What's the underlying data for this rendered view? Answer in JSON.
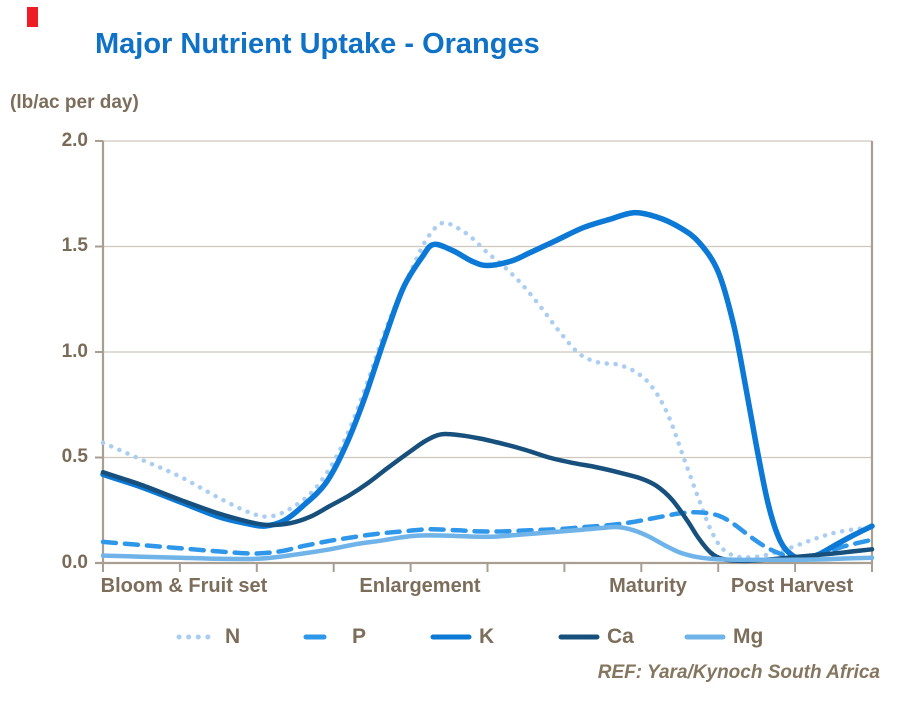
{
  "title": "Major Nutrient Uptake - Oranges",
  "y_axis_unit": "(lb/ac per day)",
  "footer_ref": "REF: Yara/Kynoch South Africa",
  "colors": {
    "title_blue": "#0f72c6",
    "label_brown": "#7d6e5b",
    "grid": "#cfc8bd",
    "axis": "#a89e92",
    "red_marker": "#ee1c25"
  },
  "chart_data": {
    "type": "line",
    "title": "Major Nutrient Uptake - Oranges",
    "xlabel": "",
    "ylabel": "(lb/ac per day)",
    "ylim": [
      0,
      2
    ],
    "yticks": [
      "2.0",
      "1.5",
      "1.0",
      "0.5",
      "0.0"
    ],
    "ytick_values": [
      2.0,
      1.5,
      1.0,
      0.5,
      0.0
    ],
    "grid": true,
    "x_tick_intervals": 10,
    "legend_position": "bottom",
    "x_categories": [
      "Bloom & Fruit set",
      "Enlargement",
      "Maturity",
      "Post Harvest"
    ],
    "x_category_positions": [
      0.105,
      0.412,
      0.709,
      0.896
    ],
    "series": [
      {
        "name": "N",
        "color": "#a9cef2",
        "style": "dotted",
        "width": 4.5,
        "points": [
          [
            0,
            0.57
          ],
          [
            0.05,
            0.49
          ],
          [
            0.1,
            0.41
          ],
          [
            0.15,
            0.31
          ],
          [
            0.19,
            0.24
          ],
          [
            0.215,
            0.22
          ],
          [
            0.24,
            0.25
          ],
          [
            0.27,
            0.33
          ],
          [
            0.295,
            0.45
          ],
          [
            0.32,
            0.63
          ],
          [
            0.345,
            0.87
          ],
          [
            0.37,
            1.13
          ],
          [
            0.4,
            1.38
          ],
          [
            0.42,
            1.53
          ],
          [
            0.44,
            1.61
          ],
          [
            0.46,
            1.59
          ],
          [
            0.48,
            1.54
          ],
          [
            0.5,
            1.47
          ],
          [
            0.52,
            1.41
          ],
          [
            0.545,
            1.32
          ],
          [
            0.57,
            1.21
          ],
          [
            0.595,
            1.09
          ],
          [
            0.62,
            0.99
          ],
          [
            0.645,
            0.95
          ],
          [
            0.67,
            0.94
          ],
          [
            0.695,
            0.9
          ],
          [
            0.715,
            0.83
          ],
          [
            0.735,
            0.7
          ],
          [
            0.755,
            0.5
          ],
          [
            0.775,
            0.3
          ],
          [
            0.79,
            0.16
          ],
          [
            0.805,
            0.07
          ],
          [
            0.825,
            0.03
          ],
          [
            0.85,
            0.03
          ],
          [
            0.875,
            0.05
          ],
          [
            0.9,
            0.08
          ],
          [
            0.93,
            0.12
          ],
          [
            0.96,
            0.15
          ],
          [
            1,
            0.17
          ]
        ]
      },
      {
        "name": "P",
        "color": "#2e97ea",
        "style": "dashed",
        "width": 4.5,
        "points": [
          [
            0,
            0.1
          ],
          [
            0.05,
            0.085
          ],
          [
            0.1,
            0.07
          ],
          [
            0.15,
            0.055
          ],
          [
            0.195,
            0.045
          ],
          [
            0.23,
            0.055
          ],
          [
            0.26,
            0.08
          ],
          [
            0.295,
            0.105
          ],
          [
            0.33,
            0.125
          ],
          [
            0.36,
            0.14
          ],
          [
            0.39,
            0.15
          ],
          [
            0.425,
            0.16
          ],
          [
            0.46,
            0.155
          ],
          [
            0.49,
            0.15
          ],
          [
            0.52,
            0.15
          ],
          [
            0.555,
            0.155
          ],
          [
            0.59,
            0.16
          ],
          [
            0.625,
            0.17
          ],
          [
            0.66,
            0.18
          ],
          [
            0.69,
            0.195
          ],
          [
            0.72,
            0.215
          ],
          [
            0.75,
            0.235
          ],
          [
            0.775,
            0.24
          ],
          [
            0.8,
            0.225
          ],
          [
            0.82,
            0.185
          ],
          [
            0.84,
            0.13
          ],
          [
            0.86,
            0.08
          ],
          [
            0.88,
            0.045
          ],
          [
            0.9,
            0.025
          ],
          [
            0.92,
            0.03
          ],
          [
            0.94,
            0.05
          ],
          [
            0.965,
            0.08
          ],
          [
            1,
            0.11
          ]
        ]
      },
      {
        "name": "K",
        "color": "#0c79d6",
        "style": "solid",
        "width": 5.5,
        "points": [
          [
            0,
            0.42
          ],
          [
            0.05,
            0.36
          ],
          [
            0.1,
            0.29
          ],
          [
            0.15,
            0.22
          ],
          [
            0.19,
            0.185
          ],
          [
            0.21,
            0.175
          ],
          [
            0.235,
            0.2
          ],
          [
            0.26,
            0.27
          ],
          [
            0.29,
            0.38
          ],
          [
            0.315,
            0.55
          ],
          [
            0.34,
            0.78
          ],
          [
            0.365,
            1.05
          ],
          [
            0.39,
            1.3
          ],
          [
            0.415,
            1.45
          ],
          [
            0.43,
            1.51
          ],
          [
            0.455,
            1.48
          ],
          [
            0.48,
            1.43
          ],
          [
            0.5,
            1.41
          ],
          [
            0.53,
            1.43
          ],
          [
            0.555,
            1.47
          ],
          [
            0.59,
            1.53
          ],
          [
            0.625,
            1.59
          ],
          [
            0.66,
            1.63
          ],
          [
            0.69,
            1.66
          ],
          [
            0.72,
            1.64
          ],
          [
            0.75,
            1.59
          ],
          [
            0.775,
            1.52
          ],
          [
            0.8,
            1.38
          ],
          [
            0.82,
            1.13
          ],
          [
            0.835,
            0.85
          ],
          [
            0.85,
            0.55
          ],
          [
            0.865,
            0.28
          ],
          [
            0.88,
            0.11
          ],
          [
            0.895,
            0.04
          ],
          [
            0.91,
            0.02
          ],
          [
            0.93,
            0.04
          ],
          [
            0.95,
            0.08
          ],
          [
            0.975,
            0.13
          ],
          [
            1,
            0.175
          ]
        ]
      },
      {
        "name": "Ca",
        "color": "#17507d",
        "style": "solid",
        "width": 4.5,
        "points": [
          [
            0,
            0.43
          ],
          [
            0.05,
            0.37
          ],
          [
            0.1,
            0.3
          ],
          [
            0.15,
            0.235
          ],
          [
            0.19,
            0.195
          ],
          [
            0.215,
            0.18
          ],
          [
            0.245,
            0.19
          ],
          [
            0.27,
            0.22
          ],
          [
            0.295,
            0.27
          ],
          [
            0.32,
            0.32
          ],
          [
            0.345,
            0.38
          ],
          [
            0.37,
            0.45
          ],
          [
            0.4,
            0.53
          ],
          [
            0.42,
            0.58
          ],
          [
            0.44,
            0.61
          ],
          [
            0.465,
            0.605
          ],
          [
            0.49,
            0.59
          ],
          [
            0.52,
            0.565
          ],
          [
            0.55,
            0.535
          ],
          [
            0.58,
            0.5
          ],
          [
            0.61,
            0.475
          ],
          [
            0.64,
            0.455
          ],
          [
            0.67,
            0.43
          ],
          [
            0.7,
            0.4
          ],
          [
            0.72,
            0.365
          ],
          [
            0.74,
            0.3
          ],
          [
            0.76,
            0.2
          ],
          [
            0.775,
            0.115
          ],
          [
            0.79,
            0.05
          ],
          [
            0.805,
            0.02
          ],
          [
            0.83,
            0.01
          ],
          [
            0.86,
            0.015
          ],
          [
            0.89,
            0.025
          ],
          [
            0.92,
            0.035
          ],
          [
            0.95,
            0.045
          ],
          [
            0.975,
            0.055
          ],
          [
            1,
            0.065
          ]
        ]
      },
      {
        "name": "Mg",
        "color": "#6fb3e8",
        "style": "solid",
        "width": 4.5,
        "points": [
          [
            0,
            0.035
          ],
          [
            0.05,
            0.03
          ],
          [
            0.1,
            0.025
          ],
          [
            0.15,
            0.02
          ],
          [
            0.2,
            0.02
          ],
          [
            0.23,
            0.03
          ],
          [
            0.26,
            0.045
          ],
          [
            0.295,
            0.065
          ],
          [
            0.33,
            0.09
          ],
          [
            0.36,
            0.105
          ],
          [
            0.385,
            0.12
          ],
          [
            0.41,
            0.13
          ],
          [
            0.445,
            0.13
          ],
          [
            0.48,
            0.125
          ],
          [
            0.51,
            0.125
          ],
          [
            0.545,
            0.135
          ],
          [
            0.58,
            0.145
          ],
          [
            0.615,
            0.155
          ],
          [
            0.645,
            0.165
          ],
          [
            0.67,
            0.17
          ],
          [
            0.69,
            0.155
          ],
          [
            0.71,
            0.125
          ],
          [
            0.73,
            0.085
          ],
          [
            0.75,
            0.05
          ],
          [
            0.77,
            0.03
          ],
          [
            0.79,
            0.02
          ],
          [
            0.82,
            0.015
          ],
          [
            0.86,
            0.015
          ],
          [
            0.9,
            0.015
          ],
          [
            0.94,
            0.018
          ],
          [
            0.97,
            0.022
          ],
          [
            1,
            0.025
          ]
        ]
      }
    ]
  }
}
